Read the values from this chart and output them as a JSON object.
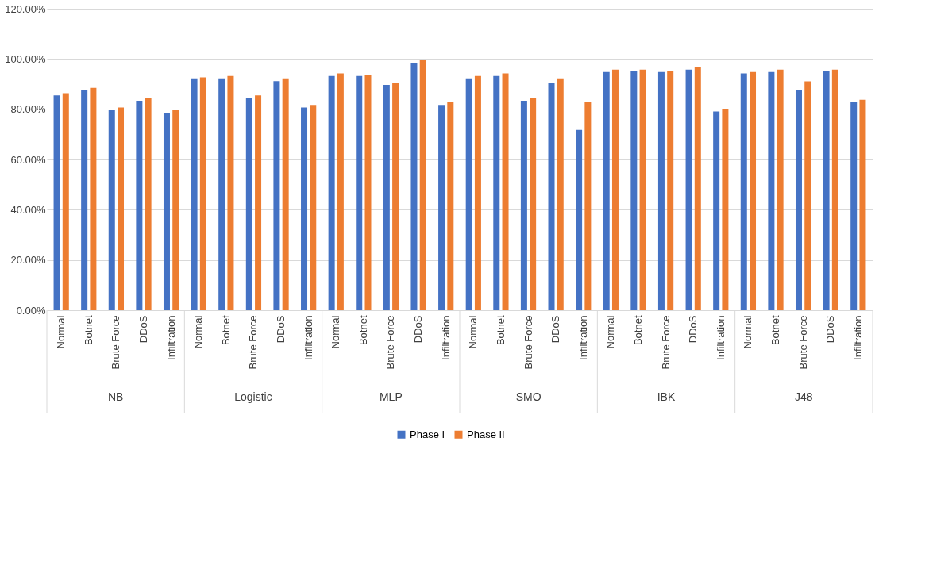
{
  "chart_data": {
    "type": "bar",
    "categories": [
      "Normal",
      "Botnet",
      "Brute Force",
      "DDoS",
      "Infiltration",
      "Normal",
      "Botnet",
      "Brute Force",
      "DDoS",
      "Infiltration",
      "Normal",
      "Botnet",
      "Brute Force",
      "DDoS",
      "Infiltration",
      "Normal",
      "Botnet",
      "Brute Force",
      "DDoS",
      "Infiltration",
      "Normal",
      "Botnet",
      "Brute Force",
      "DDoS",
      "Infiltration",
      "Normal",
      "Botnet",
      "Brute Force",
      "DDoS",
      "Infiltration"
    ],
    "series": [
      {
        "name": "Phase I",
        "color": "#4472c4",
        "values": [
          85.5,
          87.5,
          79.7,
          83.4,
          78.6,
          92.3,
          92.3,
          84.4,
          91.2,
          80.7,
          93.2,
          93.2,
          89.7,
          98.5,
          81.7,
          92.3,
          93.2,
          83.4,
          90.6,
          71.8,
          94.8,
          95.3,
          94.8,
          95.8,
          79.1,
          94.3,
          94.8,
          87.5,
          95.3,
          82.8
        ]
      },
      {
        "name": "Phase II",
        "color": "#ed7d31",
        "values": [
          86.4,
          88.5,
          80.7,
          84.3,
          79.7,
          92.7,
          93.2,
          85.5,
          92.3,
          81.7,
          94.3,
          93.7,
          90.6,
          99.6,
          82.8,
          93.2,
          94.3,
          84.3,
          92.3,
          82.8,
          95.8,
          95.8,
          95.3,
          96.9,
          80.2,
          94.8,
          95.8,
          91.1,
          95.8,
          83.8
        ]
      }
    ],
    "annotations": [
      "NB",
      "Logistic",
      "MLP",
      "SMO",
      "IBK",
      "J48"
    ],
    "ylim": [
      0,
      120
    ],
    "yticks": [
      {
        "value": 0,
        "label": "0.00%"
      },
      {
        "value": 20,
        "label": "20.00%"
      },
      {
        "value": 40,
        "label": "40.00%"
      },
      {
        "value": 60,
        "label": "60.00%"
      },
      {
        "value": 80,
        "label": "80.00%"
      },
      {
        "value": 100,
        "label": "100.00%"
      },
      {
        "value": 120,
        "label": "120.00%"
      }
    ],
    "grid": "y",
    "legend": "bottom"
  }
}
